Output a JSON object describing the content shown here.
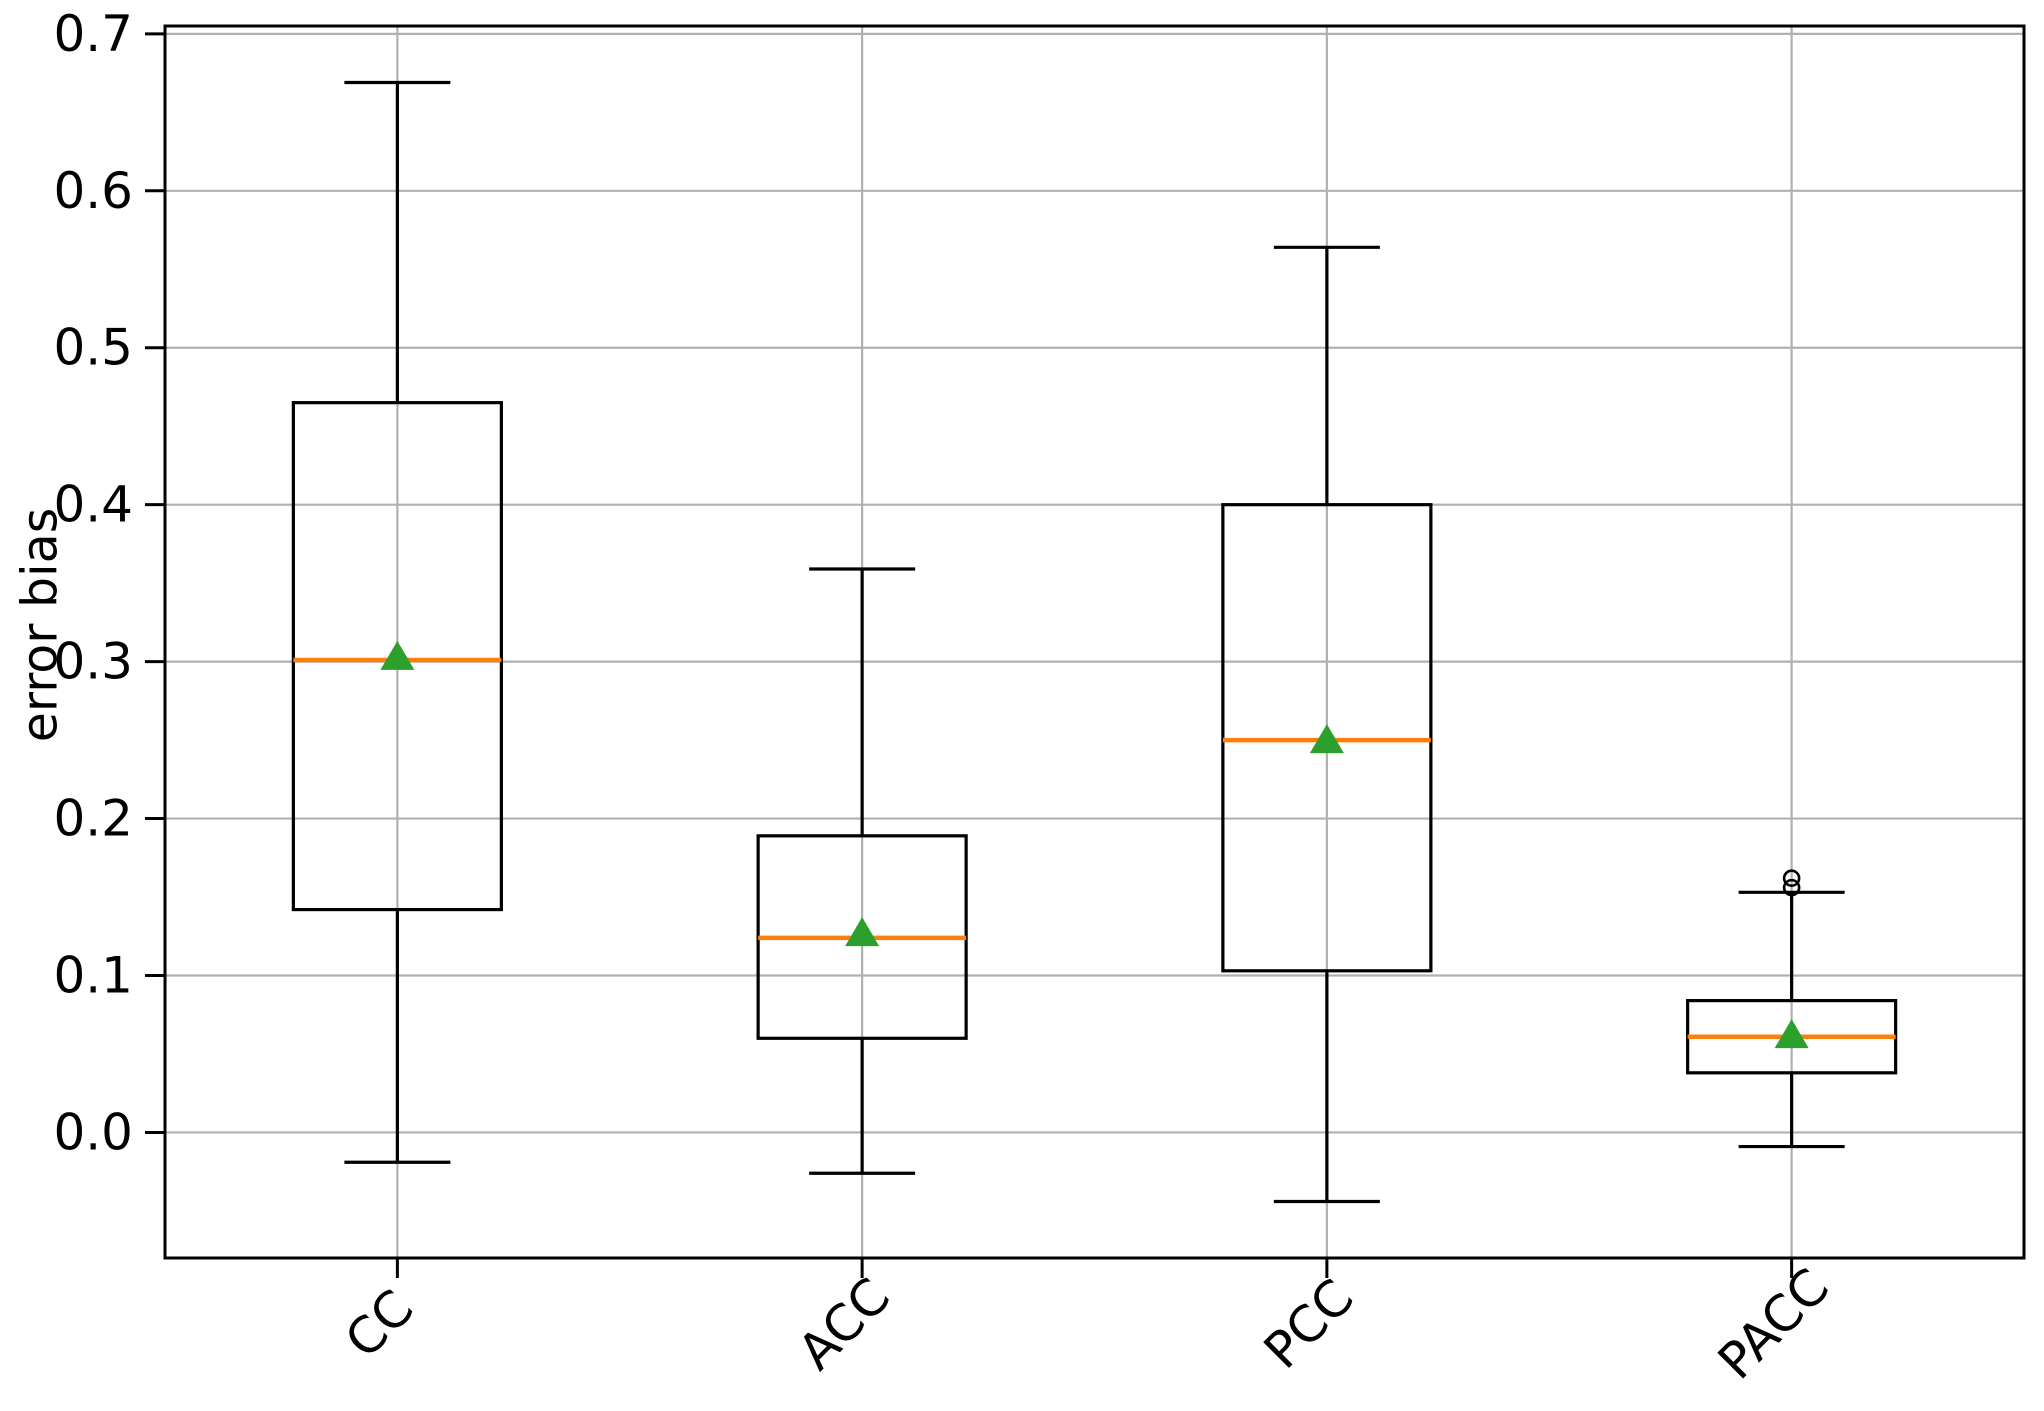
{
  "figure": {
    "background": "#ffffff"
  },
  "chart_data": {
    "type": "box",
    "title": "",
    "xlabel": "",
    "ylabel": "error bias",
    "categories": [
      "CC",
      "ACC",
      "PCC",
      "PACC"
    ],
    "yticks": [
      0.0,
      0.1,
      0.2,
      0.3,
      0.4,
      0.5,
      0.6,
      0.7
    ],
    "ytick_labels": [
      "0.0",
      "0.1",
      "0.2",
      "0.3",
      "0.4",
      "0.5",
      "0.6",
      "0.7"
    ],
    "ylim": [
      -0.08,
      0.705
    ],
    "grid": true,
    "legend": null,
    "series": [
      {
        "name": "CC",
        "whislo": -0.019,
        "q1": 0.142,
        "med": 0.301,
        "q3": 0.465,
        "whishi": 0.669,
        "mean": 0.303,
        "fliers": []
      },
      {
        "name": "ACC",
        "whislo": -0.026,
        "q1": 0.06,
        "med": 0.124,
        "q3": 0.189,
        "whishi": 0.359,
        "mean": 0.127,
        "fliers": []
      },
      {
        "name": "PCC",
        "whislo": -0.044,
        "q1": 0.103,
        "med": 0.25,
        "q3": 0.4,
        "whishi": 0.564,
        "mean": 0.25,
        "fliers": []
      },
      {
        "name": "PACC",
        "whislo": -0.009,
        "q1": 0.038,
        "med": 0.061,
        "q3": 0.084,
        "whishi": 0.153,
        "mean": 0.062,
        "fliers": [
          0.156,
          0.162
        ]
      }
    ],
    "colors": {
      "box": "#000000",
      "median": "#ff7f0e",
      "mean": "#2ca02c",
      "grid": "#b0b0b0",
      "flier": "#000000",
      "tick_text": "#000000"
    }
  }
}
